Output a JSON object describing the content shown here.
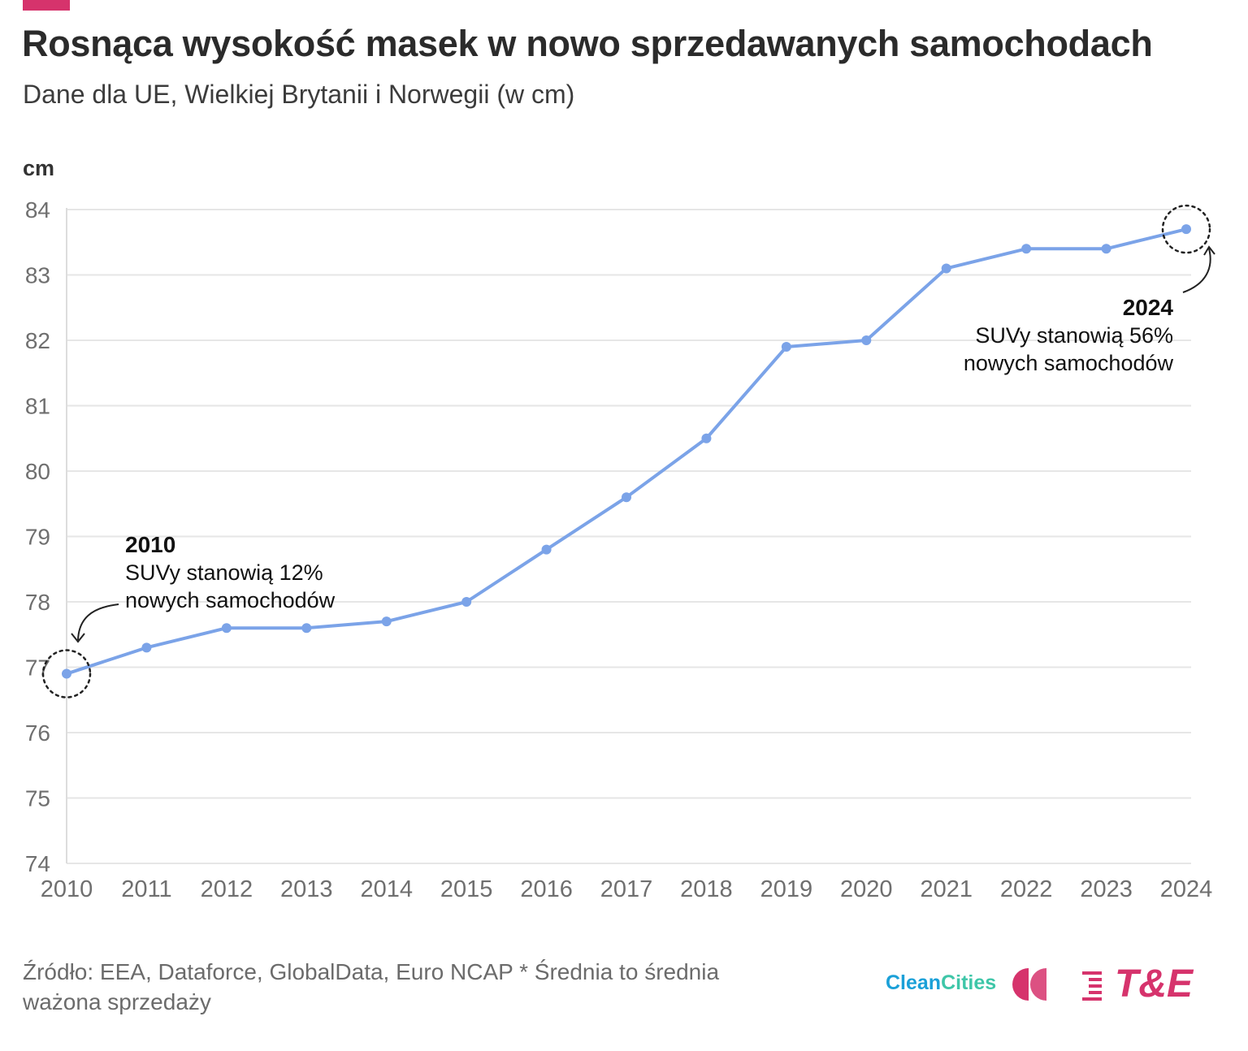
{
  "header": {
    "title": "Rosnąca wysokość masek w nowo sprzedawanych samochodach",
    "subtitle": "Dane dla UE, Wielkiej Brytanii i Norwegii (w cm)",
    "accent_color": "#d6336c"
  },
  "chart_data": {
    "type": "line",
    "title": "Rosnąca wysokość masek w nowo sprzedawanych samochodach",
    "subtitle": "Dane dla UE, Wielkiej Brytanii i Norwegii (w cm)",
    "ylabel": "cm",
    "xlabel": "",
    "x": [
      2010,
      2011,
      2012,
      2013,
      2014,
      2015,
      2016,
      2017,
      2018,
      2019,
      2020,
      2021,
      2022,
      2023,
      2024
    ],
    "series": [
      {
        "values": [
          76.9,
          77.3,
          77.6,
          77.6,
          77.7,
          78.0,
          78.8,
          79.6,
          80.5,
          81.9,
          82.0,
          83.1,
          83.4,
          83.4,
          83.7
        ],
        "color": "#7ba3e8"
      }
    ],
    "ylim": [
      74,
      84
    ],
    "yticks": [
      74,
      75,
      76,
      77,
      78,
      79,
      80,
      81,
      82,
      83,
      84
    ],
    "xticks": [
      "2010",
      "2011",
      "2012",
      "2013",
      "2014",
      "2015",
      "2016",
      "2017",
      "2018",
      "2019",
      "2020",
      "2021",
      "2022",
      "2023",
      "2024"
    ],
    "grid": true,
    "annotations": [
      {
        "x": 2010,
        "y": 76.9,
        "year_label": "2010",
        "line1": "SUVy stanowią 12%",
        "line2": "nowych samochodów"
      },
      {
        "x": 2024,
        "y": 83.7,
        "year_label": "2024",
        "line1": "SUVy stanowią 56%",
        "line2": "nowych samochodów"
      }
    ]
  },
  "footer": {
    "source": "Źródło: EEA, Dataforce, GlobalData, Euro NCAP * Średnia to średnia ważona sprzedaży",
    "logo_clean_part1": "Clean",
    "logo_clean_part2": "Cities",
    "logo_te": "T&E",
    "logo_clean_color1": "#1aa0d8",
    "logo_clean_color2": "#3ec6a8",
    "logo_pink": "#d6336c"
  }
}
